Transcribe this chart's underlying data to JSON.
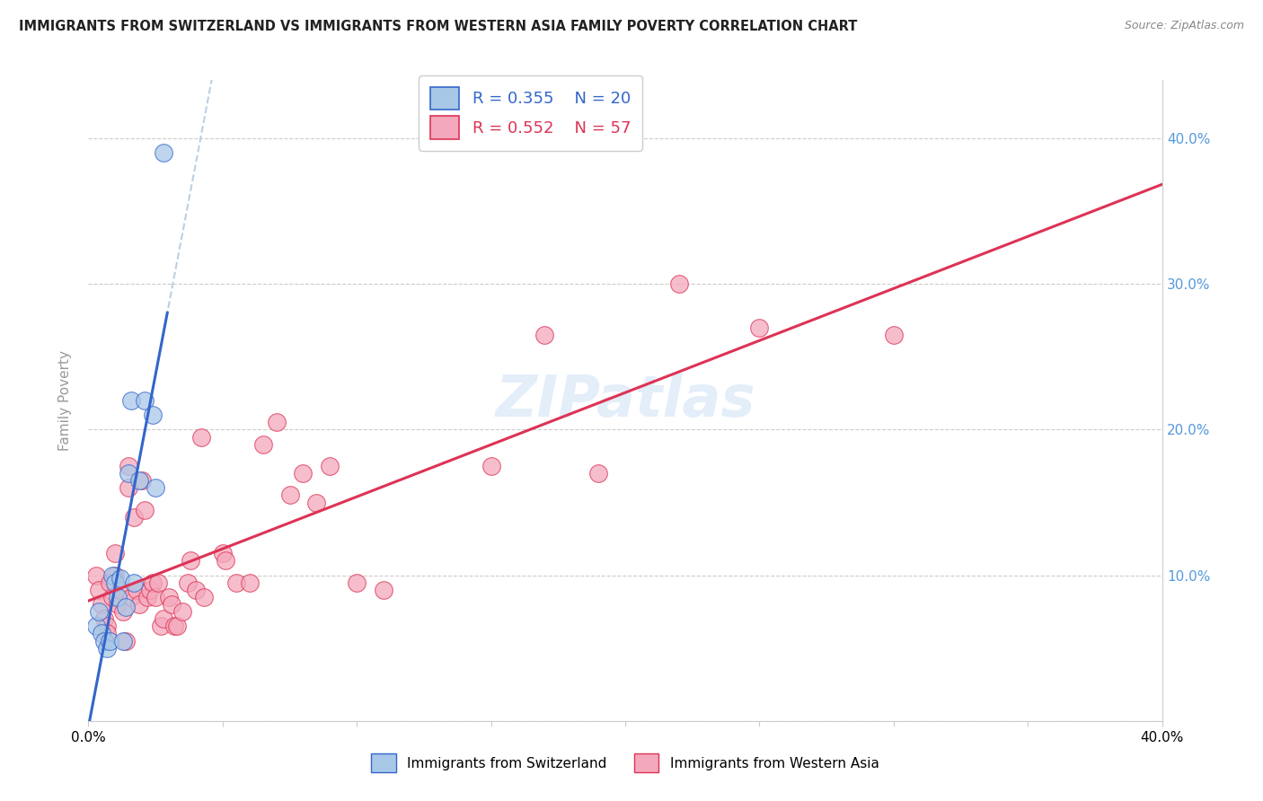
{
  "title": "IMMIGRANTS FROM SWITZERLAND VS IMMIGRANTS FROM WESTERN ASIA FAMILY POVERTY CORRELATION CHART",
  "source": "Source: ZipAtlas.com",
  "ylabel": "Family Poverty",
  "xlim": [
    0.0,
    0.4
  ],
  "ylim": [
    0.0,
    0.44
  ],
  "color_switzerland": "#a8c8e8",
  "color_western_asia": "#f4a8bc",
  "color_line_switzerland": "#3366cc",
  "color_line_western_asia": "#dd3355",
  "color_dashed": "#b0c8e0",
  "watermark": "ZIPatlas",
  "sw_x": [
    0.003,
    0.004,
    0.005,
    0.006,
    0.007,
    0.008,
    0.009,
    0.01,
    0.011,
    0.012,
    0.013,
    0.014,
    0.015,
    0.016,
    0.017,
    0.019,
    0.021,
    0.024,
    0.025,
    0.028
  ],
  "sw_y": [
    0.065,
    0.075,
    0.06,
    0.055,
    0.05,
    0.055,
    0.1,
    0.095,
    0.085,
    0.098,
    0.055,
    0.078,
    0.17,
    0.22,
    0.095,
    0.165,
    0.22,
    0.21,
    0.16,
    0.39
  ],
  "wa_x": [
    0.003,
    0.004,
    0.005,
    0.006,
    0.007,
    0.007,
    0.008,
    0.009,
    0.01,
    0.01,
    0.011,
    0.012,
    0.013,
    0.014,
    0.015,
    0.015,
    0.016,
    0.017,
    0.018,
    0.019,
    0.02,
    0.021,
    0.022,
    0.023,
    0.024,
    0.025,
    0.026,
    0.027,
    0.028,
    0.03,
    0.031,
    0.032,
    0.033,
    0.035,
    0.037,
    0.038,
    0.04,
    0.042,
    0.043,
    0.05,
    0.051,
    0.055,
    0.06,
    0.065,
    0.07,
    0.075,
    0.08,
    0.085,
    0.09,
    0.1,
    0.11,
    0.15,
    0.17,
    0.19,
    0.22,
    0.25,
    0.3
  ],
  "wa_y": [
    0.1,
    0.09,
    0.08,
    0.07,
    0.065,
    0.06,
    0.095,
    0.085,
    0.1,
    0.115,
    0.08,
    0.09,
    0.075,
    0.055,
    0.16,
    0.175,
    0.085,
    0.14,
    0.09,
    0.08,
    0.165,
    0.145,
    0.085,
    0.09,
    0.095,
    0.085,
    0.095,
    0.065,
    0.07,
    0.085,
    0.08,
    0.065,
    0.065,
    0.075,
    0.095,
    0.11,
    0.09,
    0.195,
    0.085,
    0.115,
    0.11,
    0.095,
    0.095,
    0.19,
    0.205,
    0.155,
    0.17,
    0.15,
    0.175,
    0.095,
    0.09,
    0.175,
    0.265,
    0.17,
    0.3,
    0.27,
    0.265
  ]
}
